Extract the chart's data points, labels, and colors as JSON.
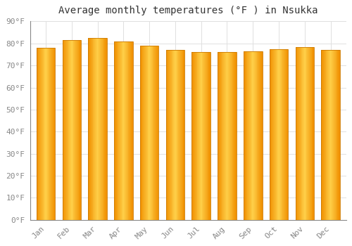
{
  "title": "Average monthly temperatures (°F ) in Nsukka",
  "months": [
    "Jan",
    "Feb",
    "Mar",
    "Apr",
    "May",
    "Jun",
    "Jul",
    "Aug",
    "Sep",
    "Oct",
    "Nov",
    "Dec"
  ],
  "values": [
    78,
    81.5,
    82.5,
    81,
    79,
    77,
    76,
    76,
    76.5,
    77.5,
    78.5,
    77
  ],
  "bar_color_center": "#FFD04A",
  "bar_color_edge": "#F09000",
  "bar_color_dark_edge": "#CC7A00",
  "ylim": [
    0,
    90
  ],
  "ytick_step": 10,
  "background_color": "#FFFFFF",
  "plot_bg_color": "#FFFFFF",
  "grid_color": "#E0E0E0",
  "title_fontsize": 10,
  "tick_fontsize": 8,
  "tick_color": "#888888",
  "spine_color": "#888888",
  "bar_width": 0.72
}
